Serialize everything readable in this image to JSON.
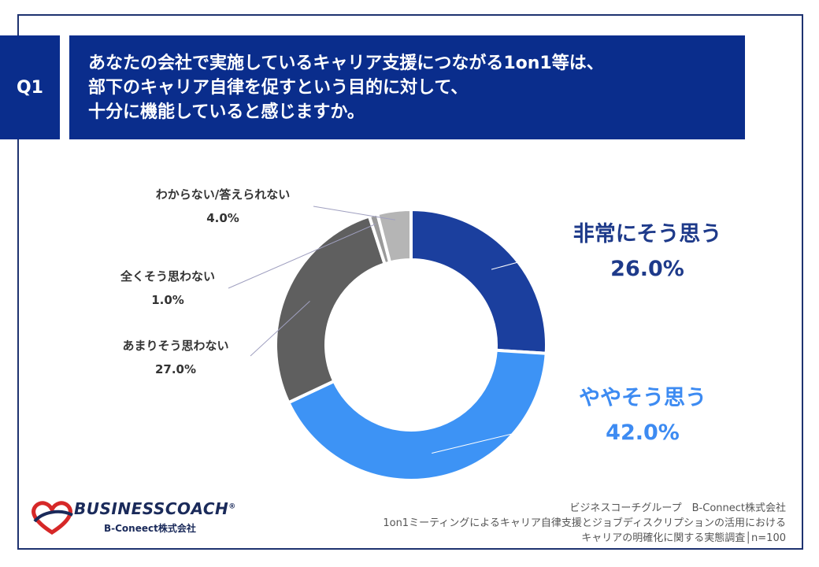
{
  "question": {
    "badge": "Q1",
    "lines": [
      "あなたの会社で実施しているキャリア支援につながる1on1等は、",
      "部下のキャリア自律を促すという目的に対して、",
      "十分に機能していると感じますか。"
    ]
  },
  "chart_data": {
    "type": "pie",
    "donut": true,
    "categories": [
      "非常にそう思う",
      "ややそう思う",
      "あまりそう思わない",
      "全くそう思わない",
      "わからない/答えられない"
    ],
    "values": [
      26.0,
      42.0,
      27.0,
      1.0,
      4.0
    ],
    "value_labels": [
      "26.0%",
      "42.0%",
      "27.0%",
      "1.0%",
      "4.0%"
    ],
    "colors": [
      "#1b3f9e",
      "#3d93f5",
      "#5f5f5f",
      "#9a9a9a",
      "#b5b5b5"
    ],
    "start": "12 o'clock",
    "direction": "clockwise"
  },
  "logo": {
    "name": "BUSINESSCOACH",
    "registered": "®",
    "sub": "B-Coneect株式会社"
  },
  "source": {
    "lines": [
      "ビジネスコーチグループ　B-Connect株式会社",
      "1on1ミーティングによるキャリア自律支援とジョブディスクリプションの活用における",
      "キャリアの明確化に関する実態調査│n=100"
    ]
  }
}
